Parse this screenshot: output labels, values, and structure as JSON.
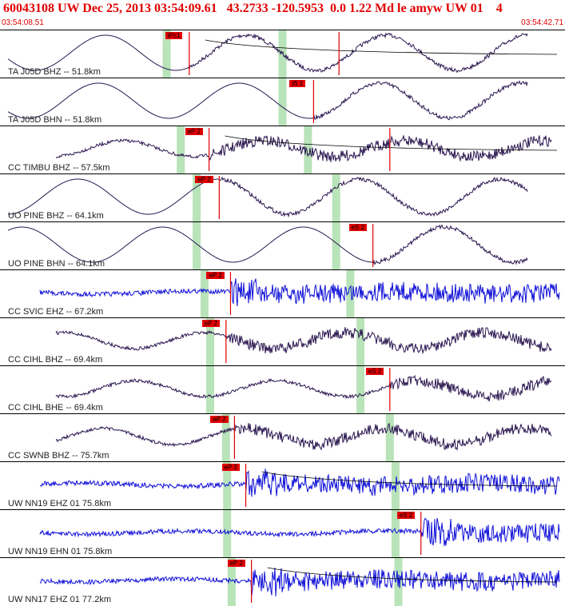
{
  "header": {
    "title": "60043108 UW Dec 25, 2013 03:54:09.61   43.2733 -120.5953  0.0 1.22 Md le amyw UW 01    4",
    "start_time": "03:54:08.51",
    "end_time": "03:54:42.71"
  },
  "colors": {
    "title": "#e00000",
    "pick": "#e00000",
    "window_band": "#b9e3b9",
    "trace_dark": "#2a1650",
    "trace_blue": "#1010d8"
  },
  "traces": [
    {
      "label": "TA J05D BHZ -- 51.8km",
      "color": "dark",
      "style": "long_period",
      "picks": [
        {
          "text": "iPc1",
          "t": 0.335
        },
        {
          "text": "",
          "t": 0.6
        }
      ],
      "bands": [
        0.295,
        0.5
      ],
      "curve": true
    },
    {
      "label": "TA J05D BHN -- 51.8km",
      "color": "dark",
      "style": "long_period",
      "picks": [
        {
          "text": "iS 1",
          "t": 0.555
        }
      ],
      "bands": [
        0.5
      ],
      "curve": false
    },
    {
      "label": "CC TIMBU BHZ -- 57.5km",
      "color": "dark",
      "style": "mixed",
      "picks": [
        {
          "text": "eP 2",
          "t": 0.37
        },
        {
          "text": "",
          "t": 0.69
        }
      ],
      "bands": [
        0.32,
        0.545
      ],
      "curve": true
    },
    {
      "label": "UO PINE BHZ -- 64.1km",
      "color": "dark",
      "style": "long_period",
      "picks": [
        {
          "text": "eP 2",
          "t": 0.388
        }
      ],
      "bands": [
        0.348,
        0.595
      ],
      "curve": false
    },
    {
      "label": "UO PINE BHN -- 64.1km",
      "color": "dark",
      "style": "long_period",
      "picks": [
        {
          "text": "eS 2",
          "t": 0.66
        }
      ],
      "bands": [
        0.348,
        0.595
      ],
      "curve": false
    },
    {
      "label": "CC SVIC EHZ -- 67.2km",
      "color": "blue",
      "style": "short_period",
      "picks": [
        {
          "text": "eP 2",
          "t": 0.408
        }
      ],
      "bands": [
        0.362,
        0.62
      ],
      "curve": false
    },
    {
      "label": "CC CIHL BHZ -- 69.4km",
      "color": "dark",
      "style": "mixed",
      "picks": [
        {
          "text": "eP 2",
          "t": 0.4
        }
      ],
      "bands": [
        0.372,
        0.638
      ],
      "curve": false
    },
    {
      "label": "CC CIHL BHE -- 69.4km",
      "color": "dark",
      "style": "mixed",
      "picks": [
        {
          "text": "eS 2",
          "t": 0.69
        }
      ],
      "bands": [
        0.372,
        0.638
      ],
      "curve": false
    },
    {
      "label": "CC SWNB BHZ -- 75.7km",
      "color": "dark",
      "style": "mixed",
      "picks": [
        {
          "text": "eP 2",
          "t": 0.415
        }
      ],
      "bands": [
        0.4,
        0.69
      ],
      "curve": false
    },
    {
      "label": "UW NN19 EHZ 01 75.8km",
      "color": "blue",
      "style": "short_period",
      "picks": [
        {
          "text": "eP 2",
          "t": 0.435
        }
      ],
      "bands": [
        0.402,
        0.7
      ],
      "curve": true
    },
    {
      "label": "UW NN19 EHN 01 75.8km",
      "color": "blue",
      "style": "short_period",
      "picks": [
        {
          "text": "eS 2",
          "t": 0.745
        }
      ],
      "bands": [
        0.402,
        0.7
      ],
      "curve": false
    },
    {
      "label": "UW NN17 EHZ 01 77.2km",
      "color": "blue",
      "style": "short_period",
      "picks": [
        {
          "text": "eP 2",
          "t": 0.445
        }
      ],
      "bands": [
        0.41,
        0.705
      ],
      "curve": true
    }
  ]
}
